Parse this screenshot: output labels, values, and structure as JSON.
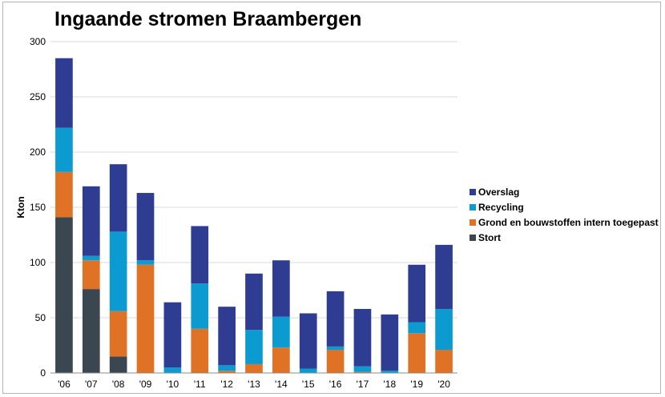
{
  "chart_data": {
    "type": "bar",
    "stacked": true,
    "title": "Ingaande stromen Braambergen",
    "xlabel": "",
    "ylabel": "Kton",
    "ylim": [
      0,
      300
    ],
    "yticks": [
      0,
      50,
      100,
      150,
      200,
      250,
      300
    ],
    "grid": true,
    "legend_position": "right",
    "categories": [
      "'06",
      "'07",
      "'08",
      "'09",
      "'10",
      "'11",
      "'12",
      "'13",
      "'14",
      "'15",
      "'16",
      "'17",
      "'18",
      "'19",
      "'20"
    ],
    "series": [
      {
        "name": "Stort",
        "color": "#3a4750",
        "values": [
          141,
          76,
          15,
          0,
          0,
          0,
          0,
          0,
          0,
          0,
          0,
          0,
          0,
          0,
          0
        ]
      },
      {
        "name": "Grond en bouwstoffen intern toegepast",
        "color": "#e07226",
        "values": [
          41,
          26,
          41,
          98,
          0,
          40,
          2,
          8,
          23,
          0,
          21,
          1,
          0,
          36,
          21
        ]
      },
      {
        "name": "Recycling",
        "color": "#0b9bd0",
        "values": [
          40,
          4,
          72,
          4,
          5,
          41,
          5,
          31,
          28,
          4,
          3,
          5,
          2,
          10,
          37
        ]
      },
      {
        "name": "Overslag",
        "color": "#2e3c92",
        "values": [
          63,
          63,
          61,
          61,
          59,
          52,
          53,
          51,
          51,
          50,
          50,
          52,
          51,
          52,
          58
        ]
      }
    ],
    "legend_order": [
      "Overslag",
      "Recycling",
      "Grond en bouwstoffen intern toegepast",
      "Stort"
    ]
  }
}
